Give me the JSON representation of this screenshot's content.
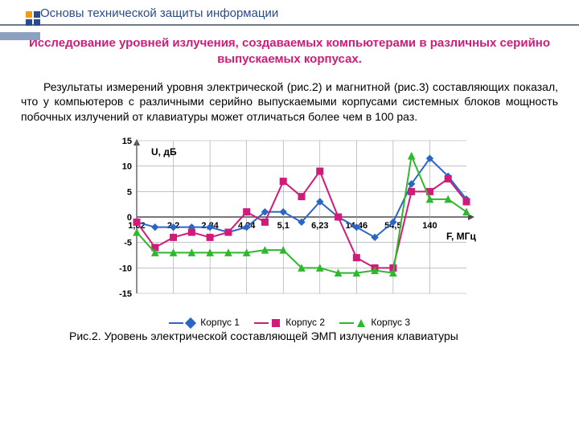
{
  "header": {
    "title": "Основы технической защиты информации",
    "title_color": "#2a4b8d",
    "logo_colors": {
      "orange": "#f39c12",
      "navy": "#2a4b8d"
    }
  },
  "subject": {
    "text": "Исследование уровней излучения, создаваемых компьютерами в различных серийно выпускаемых корпусах.",
    "color": "#d11b7a"
  },
  "paragraph": "Результаты измерений уровня электрической (рис.2) и магнитной (рис.3) составляющих показал, что у компьютеров с различными серийно выпускаемыми корпусами системных блоков мощность побочных излучений от клавиатуры может отличаться более чем в 100 раз.",
  "chart": {
    "type": "line",
    "ylabel": "U, дБ",
    "xlabel": "F, МГц",
    "ylim": [
      -15,
      15
    ],
    "ytick_step": 5,
    "yticks": [
      -15,
      -10,
      -5,
      0,
      5,
      10,
      15
    ],
    "xcats": [
      "1,02",
      "2,2",
      "2,84",
      "4,24",
      "5,1",
      "6,23",
      "14,46",
      "54,5",
      "140"
    ],
    "xticks_idx": [
      0,
      2,
      4,
      6,
      8,
      10,
      12,
      14,
      16
    ],
    "grid_color": "#9aa0a6",
    "axis_color": "#4a4a4a",
    "background_color": "#ffffff",
    "label_fontsize": 12,
    "tick_fontsize": 11,
    "marker_size": 4,
    "line_width": 2,
    "series": [
      {
        "name": "Корпус 1",
        "color": "#2a66c8",
        "marker": "diamond",
        "values": [
          -1,
          -2,
          -2,
          -2,
          -2,
          -3,
          -2,
          1,
          1,
          -1,
          3,
          0,
          -2,
          -4,
          -1,
          6.5,
          11.5,
          8,
          3.5
        ]
      },
      {
        "name": "Корпус 2",
        "color": "#d11b7a",
        "marker": "square",
        "values": [
          -1,
          -6,
          -4,
          -3,
          -4,
          -3,
          1,
          -1,
          7,
          4,
          9,
          0,
          -8,
          -10,
          -10,
          5,
          5,
          7.5,
          3
        ]
      },
      {
        "name": "Корпус 3",
        "color": "#2eb82e",
        "marker": "triangle",
        "values": [
          -3,
          -7,
          -7,
          -7,
          -7,
          -7,
          -7,
          -6.5,
          -6.5,
          -10,
          -10,
          -11,
          -11,
          -10.5,
          -11,
          12,
          3.5,
          3.5,
          1
        ]
      }
    ]
  },
  "caption": "Рис.2. Уровень электрической составляющей ЭМП излучения клавиатуры"
}
